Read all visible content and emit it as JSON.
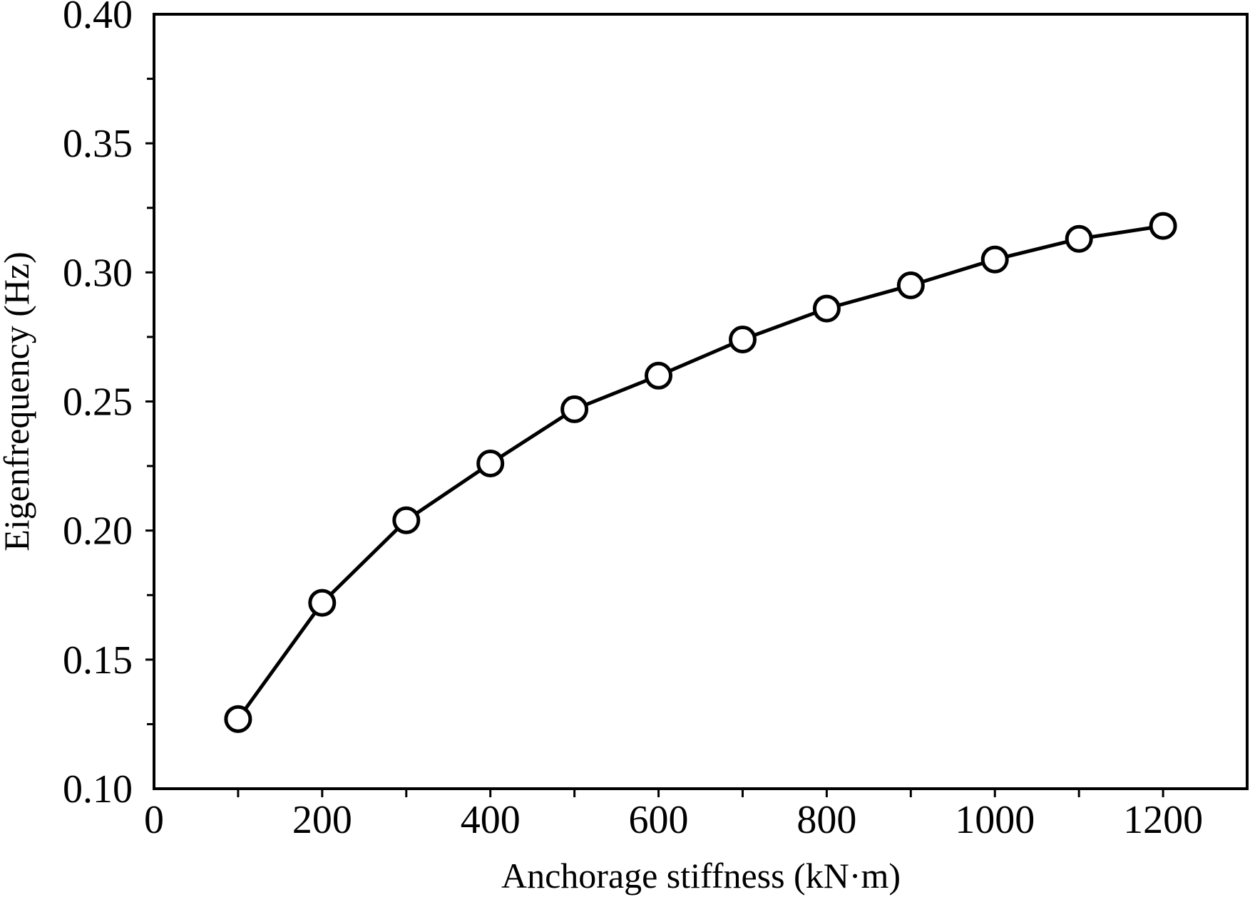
{
  "chart_data": {
    "type": "line",
    "title": "",
    "xlabel": "Anchorage stiffness (kN·m)",
    "ylabel": "Eigenfrequency (Hz)",
    "xlim": [
      0,
      1300
    ],
    "ylim": [
      0.1,
      0.4
    ],
    "x_ticks": [
      0,
      200,
      400,
      600,
      800,
      1000,
      1200
    ],
    "x_tick_labels": [
      "0",
      "200",
      "400",
      "600",
      "800",
      "1000",
      "1200"
    ],
    "x_minor_ticks": [
      100,
      300,
      500,
      700,
      900,
      1100
    ],
    "y_ticks": [
      0.1,
      0.15,
      0.2,
      0.25,
      0.3,
      0.35,
      0.4
    ],
    "y_tick_labels": [
      "0.10",
      "0.15",
      "0.20",
      "0.25",
      "0.30",
      "0.35",
      "0.40"
    ],
    "y_minor_ticks": [
      0.125,
      0.175,
      0.225,
      0.275,
      0.325,
      0.375
    ],
    "grid": false,
    "legend": "none",
    "series": [
      {
        "x": [
          100,
          200,
          300,
          400,
          500,
          600,
          700,
          800,
          900,
          1000,
          1100,
          1200
        ],
        "values": [
          0.127,
          0.172,
          0.204,
          0.226,
          0.247,
          0.26,
          0.274,
          0.286,
          0.295,
          0.305,
          0.313,
          0.318
        ],
        "marker": "open-circle",
        "color": "#000000"
      }
    ]
  }
}
